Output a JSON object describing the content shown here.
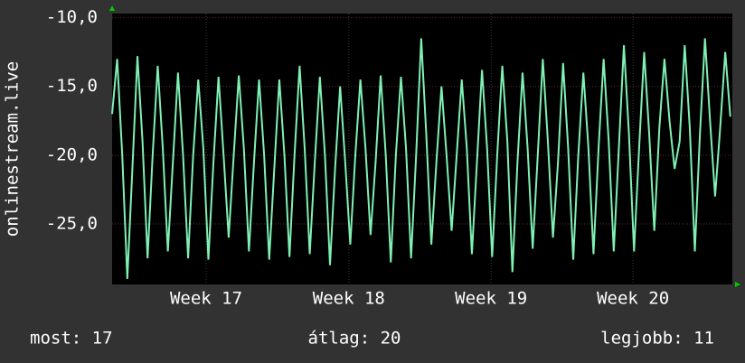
{
  "chart_data": {
    "type": "line",
    "ylabel": "onlinestream.live",
    "annotations": [
      "most: 17",
      "átlag: 20",
      "legjobb: 11"
    ],
    "color": "#7ff0b4",
    "grid": true,
    "xlim": [
      0,
      30.6
    ],
    "xticks": [
      {
        "value": 4.64,
        "label": "Week 17"
      },
      {
        "value": 11.68,
        "label": "Week 18"
      },
      {
        "value": 18.7,
        "label": "Week 19"
      },
      {
        "value": 25.7,
        "label": "Week 20"
      }
    ],
    "ylim": [
      -29.4,
      -9.7
    ],
    "yticks": [
      {
        "value": -10,
        "label": "-10,0"
      },
      {
        "value": -15,
        "label": "-15,0"
      },
      {
        "value": -20,
        "label": "-20,0"
      },
      {
        "value": -25,
        "label": "-25,0"
      }
    ],
    "x": [
      0,
      0.25,
      0.5,
      0.75,
      1,
      1.25,
      1.5,
      1.75,
      2,
      2.25,
      2.5,
      2.75,
      3,
      3.25,
      3.5,
      3.75,
      4,
      4.25,
      4.5,
      4.75,
      5,
      5.25,
      5.5,
      5.75,
      6,
      6.25,
      6.5,
      6.75,
      7,
      7.25,
      7.5,
      7.75,
      8,
      8.25,
      8.5,
      8.75,
      9,
      9.25,
      9.5,
      9.75,
      10,
      10.25,
      10.5,
      10.75,
      11,
      11.25,
      11.5,
      11.75,
      12,
      12.25,
      12.5,
      12.75,
      13,
      13.25,
      13.5,
      13.75,
      14,
      14.25,
      14.5,
      14.75,
      15,
      15.25,
      15.5,
      15.75,
      16,
      16.25,
      16.5,
      16.75,
      17,
      17.25,
      17.5,
      17.75,
      18,
      18.25,
      18.5,
      18.75,
      19,
      19.25,
      19.5,
      19.75,
      20,
      20.25,
      20.5,
      20.75,
      21,
      21.25,
      21.5,
      21.75,
      22,
      22.25,
      22.5,
      22.75,
      23,
      23.25,
      23.5,
      23.75,
      24,
      24.25,
      24.5,
      24.75,
      25,
      25.25,
      25.5,
      25.75,
      26,
      26.25,
      26.5,
      26.75,
      27,
      27.25,
      27.5,
      27.75,
      28,
      28.25,
      28.5,
      28.75,
      29,
      29.25,
      29.5,
      29.75,
      30,
      30.25,
      30.5
    ],
    "values": [
      -17,
      -13,
      -20,
      -29,
      -21,
      -12.8,
      -19,
      -27.5,
      -20,
      -13.5,
      -19.5,
      -27,
      -20.5,
      -14,
      -20,
      -27.5,
      -20,
      -14.5,
      -19.5,
      -27.6,
      -20.5,
      -14.3,
      -20,
      -26,
      -20,
      -14.2,
      -19.5,
      -27,
      -20.5,
      -14.5,
      -20,
      -27.6,
      -21,
      -14.5,
      -20,
      -27.4,
      -20,
      -13.5,
      -19.5,
      -27.2,
      -20.5,
      -14.3,
      -20,
      -28,
      -21,
      -15,
      -20.5,
      -26.5,
      -20,
      -14.5,
      -19.5,
      -25.8,
      -20.5,
      -14.2,
      -20,
      -27.8,
      -20,
      -14.3,
      -19.5,
      -27.5,
      -20,
      -11.5,
      -18.5,
      -26.5,
      -20.5,
      -15,
      -20,
      -25.5,
      -20,
      -14.5,
      -19.5,
      -27.2,
      -20.5,
      -13.8,
      -19.5,
      -27.4,
      -20,
      -13.5,
      -19,
      -28.5,
      -20.5,
      -14,
      -19.5,
      -26.8,
      -20,
      -13,
      -19,
      -26,
      -20.5,
      -13.3,
      -19.5,
      -27.6,
      -20,
      -14,
      -19.5,
      -27.2,
      -19.5,
      -13,
      -19,
      -27,
      -19.5,
      -12,
      -18.5,
      -27,
      -19.5,
      -12.5,
      -18.5,
      -25.5,
      -18,
      -13,
      -17.5,
      -21,
      -19,
      -12,
      -18,
      -27,
      -18.5,
      -11.5,
      -17.5,
      -23,
      -18,
      -12.5,
      -17.2
    ]
  }
}
